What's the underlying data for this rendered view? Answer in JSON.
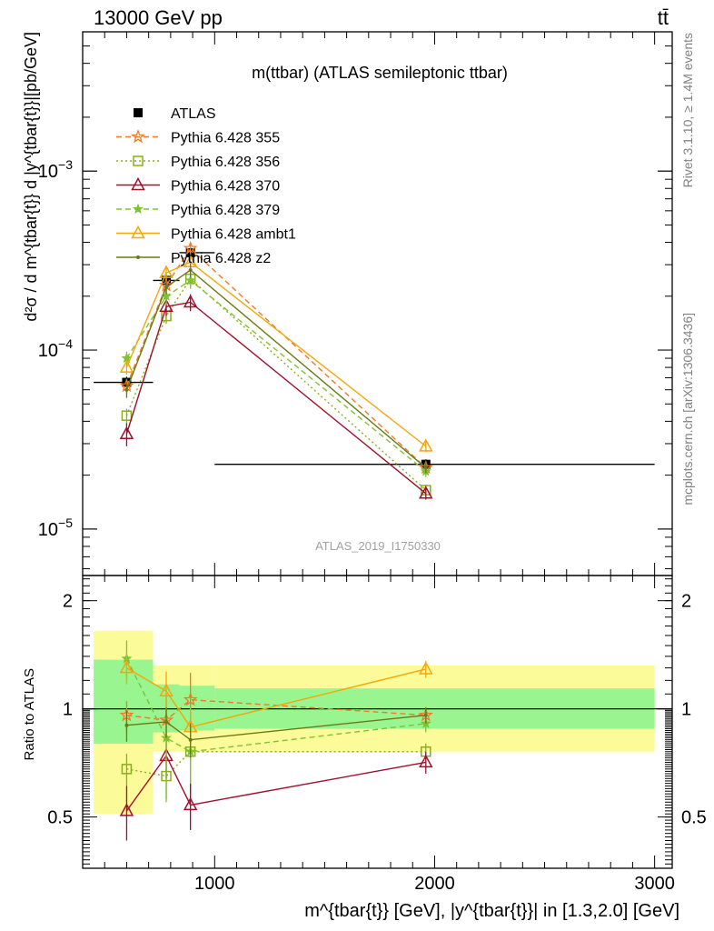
{
  "header": {
    "left": "13000 GeV pp",
    "right": "tt̄"
  },
  "side_labels": {
    "top": "Rivet 3.1.10, ≥ 1.4M events",
    "bottom": "mcplots.cern.ch [arXiv:1306.3436]"
  },
  "watermark": "ATLAS_2019_I1750330",
  "colors": {
    "data": "#000000",
    "p355": "#f07a26",
    "p356": "#8aae1e",
    "p370": "#a0102c",
    "p379": "#7ec234",
    "ambt1": "#f5a60a",
    "z2": "#6b7a18",
    "band_inner": "#99f58f",
    "band_outer": "#fbfb9a"
  },
  "chart_data": [
    {
      "type": "line",
      "title": "m(ttbar) (ATLAS semileptonic ttbar)",
      "ylabel": "d²σ / d m^{tbar{t}} d |y^{tbar{t}}|[pb/GeV]",
      "y_scale": "log",
      "xlim": [
        400,
        3080
      ],
      "ylim": [
        5.5e-06,
        0.006
      ],
      "grid": false,
      "legend_position": "top-left",
      "yticks": [
        {
          "value": 1e-05,
          "base": "10",
          "exp": "−5"
        },
        {
          "value": 0.0001,
          "base": "10",
          "exp": "−4"
        },
        {
          "value": 0.001,
          "base": "10",
          "exp": "−3"
        }
      ],
      "bins": [
        {
          "lo": 450,
          "hi": 720
        },
        {
          "lo": 720,
          "hi": 840
        },
        {
          "lo": 840,
          "hi": 1000
        },
        {
          "lo": 1000,
          "hi": 3000
        }
      ],
      "x": [
        600,
        780,
        890,
        1960
      ],
      "series": [
        {
          "name": "ATLAS",
          "color_key": "data",
          "style": "solid",
          "marker": "square",
          "values": [
            6.6e-05,
            0.000245,
            0.00035,
            2.3e-05
          ],
          "errors": [
            5e-06,
            2e-05,
            2.5e-05,
            1.5e-06
          ]
        },
        {
          "name": "Pythia 6.428 355",
          "color_key": "p355",
          "style": "dashed",
          "marker": "star",
          "values": [
            6.3e-05,
            0.00023,
            0.00037,
            2.2e-05
          ],
          "errors": [
            6e-06,
            2e-05,
            3e-05,
            1.5e-06
          ]
        },
        {
          "name": "Pythia 6.428 356",
          "color_key": "p356",
          "style": "dotted",
          "marker": "square-open",
          "values": [
            4.3e-05,
            0.000155,
            0.00025,
            1.65e-05
          ],
          "errors": [
            4e-06,
            1.5e-05,
            2.5e-05,
            1.2e-06
          ]
        },
        {
          "name": "Pythia 6.428 370",
          "color_key": "p370",
          "style": "solid",
          "marker": "triangle-open",
          "values": [
            3.4e-05,
            0.000175,
            0.000185,
            1.58e-05
          ],
          "errors": [
            5e-06,
            2e-05,
            2e-05,
            1.2e-06
          ]
        },
        {
          "name": "Pythia 6.428 379",
          "color_key": "p379",
          "style": "dashed",
          "marker": "star-small",
          "values": [
            9e-05,
            0.0002,
            0.000245,
            2.1e-05
          ],
          "errors": [
            8e-06,
            2e-05,
            2.5e-05,
            1.5e-06
          ]
        },
        {
          "name": "Pythia 6.428 ambt1",
          "color_key": "ambt1",
          "style": "solid",
          "marker": "triangle-open",
          "values": [
            8e-05,
            0.00027,
            0.00031,
            2.9e-05
          ],
          "errors": [
            7e-06,
            2.5e-05,
            3e-05,
            2e-06
          ]
        },
        {
          "name": "Pythia 6.428 z2",
          "color_key": "z2",
          "style": "solid",
          "marker": "dot",
          "values": [
            6e-05,
            0.000225,
            0.00028,
            2.2e-05
          ],
          "errors": [
            6e-06,
            2e-05,
            2.5e-05,
            1.5e-06
          ]
        }
      ]
    },
    {
      "type": "line",
      "ylabel": "Ratio to ATLAS",
      "xlabel": "m^{tbar{t}} [GeV], |y^{tbar{t}}| in [1.3,2.0] [GeV]",
      "xlim": [
        400,
        3080
      ],
      "ylim": [
        0.36,
        2.35
      ],
      "y_scale": "log",
      "grid": false,
      "xticks": [
        {
          "value": 1000,
          "label": "1000"
        },
        {
          "value": 2000,
          "label": "2000"
        },
        {
          "value": 3000,
          "label": "3000"
        }
      ],
      "yticks": [
        {
          "value": 0.5,
          "label": "0.5"
        },
        {
          "value": 1,
          "label": "1"
        },
        {
          "value": 2,
          "label": "2"
        }
      ],
      "bands": [
        {
          "lo": 450,
          "hi": 720,
          "inner": [
            0.8,
            1.37
          ],
          "outer": [
            0.51,
            1.65
          ]
        },
        {
          "lo": 720,
          "hi": 840,
          "inner": [
            0.86,
            1.17
          ],
          "outer": [
            0.76,
            1.32
          ]
        },
        {
          "lo": 840,
          "hi": 1000,
          "inner": [
            0.87,
            1.16
          ],
          "outer": [
            0.76,
            1.32
          ]
        },
        {
          "lo": 1000,
          "hi": 3000,
          "inner": [
            0.88,
            1.14
          ],
          "outer": [
            0.76,
            1.32
          ]
        }
      ],
      "x": [
        600,
        780,
        890,
        1960
      ],
      "series": [
        {
          "name": "Pythia 6.428 355",
          "color_key": "p355",
          "style": "dashed",
          "marker": "star",
          "values": [
            0.96,
            0.93,
            1.06,
            0.96
          ],
          "errors": [
            0.09,
            0.08,
            0.2,
            0.04
          ]
        },
        {
          "name": "Pythia 6.428 356",
          "color_key": "p356",
          "style": "dotted",
          "marker": "square-open",
          "values": [
            0.68,
            0.65,
            0.76,
            0.76
          ],
          "errors": [
            0.07,
            0.09,
            0.2,
            0.04
          ]
        },
        {
          "name": "Pythia 6.428 370",
          "color_key": "p370",
          "style": "solid",
          "marker": "triangle-open",
          "values": [
            0.52,
            0.74,
            0.54,
            0.71
          ],
          "errors": [
            0.09,
            0.1,
            0.08,
            0.05
          ]
        },
        {
          "name": "Pythia 6.428 379",
          "color_key": "p379",
          "style": "dashed",
          "marker": "star-small",
          "values": [
            1.38,
            0.83,
            0.76,
            0.91
          ],
          "errors": [
            0.17,
            0.28,
            0.14,
            0.05
          ]
        },
        {
          "name": "Pythia 6.428 ambt1",
          "color_key": "ambt1",
          "style": "solid",
          "marker": "triangle-open",
          "values": [
            1.3,
            1.12,
            0.89,
            1.29
          ],
          "errors": [
            0.13,
            0.15,
            0.12,
            0.07
          ]
        },
        {
          "name": "Pythia 6.428 z2",
          "color_key": "z2",
          "style": "solid",
          "marker": "dot",
          "values": [
            0.9,
            0.92,
            0.82,
            0.96
          ],
          "errors": [
            0.09,
            0.09,
            0.09,
            0.05
          ]
        }
      ]
    }
  ]
}
